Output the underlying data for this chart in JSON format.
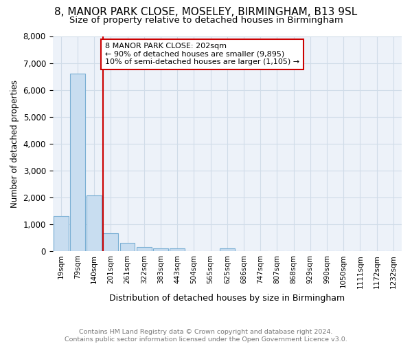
{
  "title": "8, MANOR PARK CLOSE, MOSELEY, BIRMINGHAM, B13 9SL",
  "subtitle": "Size of property relative to detached houses in Birmingham",
  "xlabel": "Distribution of detached houses by size in Birmingham",
  "ylabel": "Number of detached properties",
  "footnote1": "Contains HM Land Registry data © Crown copyright and database right 2024.",
  "footnote2": "Contains public sector information licensed under the Open Government Licence v3.0.",
  "annotation_line1": "8 MANOR PARK CLOSE: 202sqm",
  "annotation_line2": "← 90% of detached houses are smaller (9,895)",
  "annotation_line3": "10% of semi-detached houses are larger (1,105) →",
  "bar_categories": [
    "19sqm",
    "79sqm",
    "140sqm",
    "201sqm",
    "261sqm",
    "322sqm",
    "383sqm",
    "443sqm",
    "504sqm",
    "565sqm",
    "625sqm",
    "686sqm",
    "747sqm",
    "807sqm",
    "868sqm",
    "929sqm",
    "990sqm",
    "1050sqm",
    "1111sqm",
    "1172sqm",
    "1232sqm"
  ],
  "bar_values": [
    1310,
    6600,
    2080,
    660,
    305,
    155,
    110,
    100,
    0,
    0,
    100,
    0,
    0,
    0,
    0,
    0,
    0,
    0,
    0,
    0,
    0
  ],
  "bar_color": "#c8ddf0",
  "bar_edge_color": "#7aafd4",
  "property_line_color": "#cc0000",
  "ylim": [
    0,
    8000
  ],
  "yticks": [
    0,
    1000,
    2000,
    3000,
    4000,
    5000,
    6000,
    7000,
    8000
  ],
  "grid_color": "#d0dce8",
  "background_color": "#ffffff",
  "plot_bg_color": "#edf2f9",
  "title_fontsize": 11,
  "subtitle_fontsize": 9.5,
  "footnote_color": "#777777"
}
